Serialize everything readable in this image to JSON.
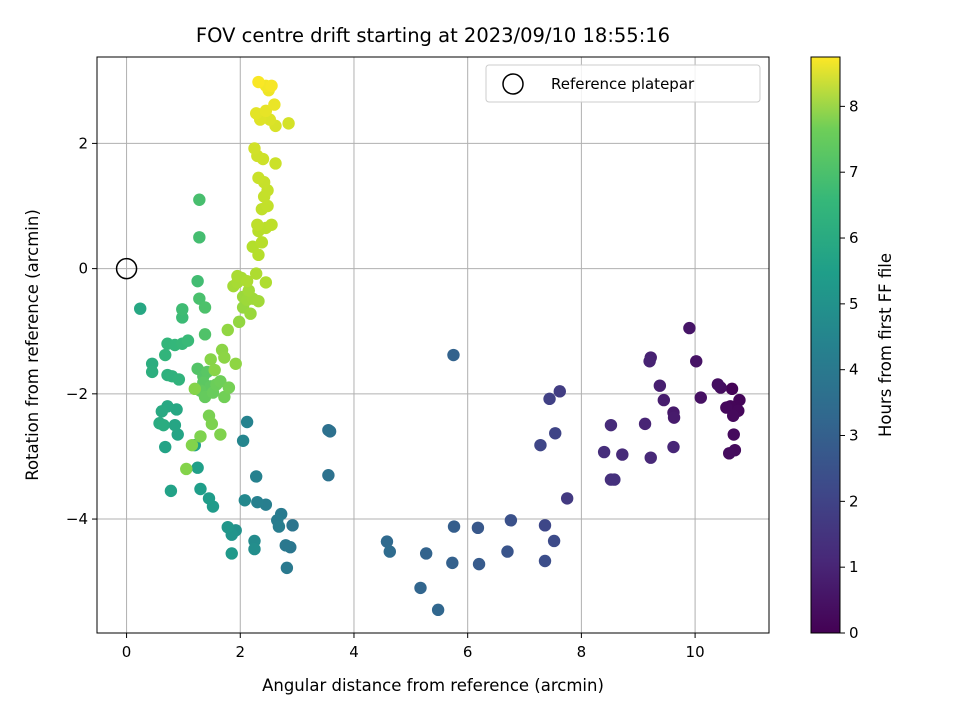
{
  "chart_data": {
    "type": "scatter",
    "title": "FOV centre drift starting at 2023/09/10 18:55:16",
    "xlabel": "Angular distance from reference (arcmin)",
    "ylabel": "Rotation from reference (arcmin)",
    "xlim": [
      -0.52,
      11.3
    ],
    "ylim": [
      -5.82,
      3.38
    ],
    "xticks": [
      0,
      2,
      4,
      6,
      8,
      10
    ],
    "yticks": [
      -4,
      -2,
      0,
      2
    ],
    "xtick_labels": [
      "0",
      "2",
      "4",
      "6",
      "8",
      "10"
    ],
    "ytick_labels": [
      "−4",
      "−2",
      "0",
      "2"
    ],
    "grid": true,
    "legend": {
      "placement": "top-right",
      "label": "Reference platepar"
    },
    "reference_point": {
      "x": 0,
      "y": 0
    },
    "colorbar": {
      "label": "Hours from first FF file",
      "colormap": "viridis",
      "min": 0,
      "max": 8.75,
      "ticks": [
        0,
        1,
        2,
        3,
        4,
        5,
        6,
        7,
        8
      ],
      "tick_labels": [
        "0",
        "1",
        "2",
        "3",
        "4",
        "5",
        "6",
        "7",
        "8"
      ]
    },
    "points": [
      {
        "x": 10.65,
        "y": -1.92,
        "c": 0.05
      },
      {
        "x": 10.78,
        "y": -2.1,
        "c": 0.1
      },
      {
        "x": 10.62,
        "y": -2.2,
        "c": 0.12
      },
      {
        "x": 10.76,
        "y": -2.27,
        "c": 0.15
      },
      {
        "x": 10.55,
        "y": -2.22,
        "c": 0.18
      },
      {
        "x": 10.67,
        "y": -2.35,
        "c": 0.2
      },
      {
        "x": 10.68,
        "y": -2.65,
        "c": 0.22
      },
      {
        "x": 10.7,
        "y": -2.9,
        "c": 0.25
      },
      {
        "x": 10.6,
        "y": -2.95,
        "c": 0.28
      },
      {
        "x": 10.45,
        "y": -1.9,
        "c": 0.3
      },
      {
        "x": 10.4,
        "y": -1.85,
        "c": 0.35
      },
      {
        "x": 10.1,
        "y": -2.06,
        "c": 0.4
      },
      {
        "x": 10.02,
        "y": -1.48,
        "c": 0.45
      },
      {
        "x": 9.9,
        "y": -0.95,
        "c": 0.5
      },
      {
        "x": 9.62,
        "y": -2.3,
        "c": 0.6
      },
      {
        "x": 9.63,
        "y": -2.38,
        "c": 0.65
      },
      {
        "x": 9.45,
        "y": -2.1,
        "c": 0.7
      },
      {
        "x": 9.38,
        "y": -1.87,
        "c": 0.75
      },
      {
        "x": 9.22,
        "y": -1.42,
        "c": 0.8
      },
      {
        "x": 9.2,
        "y": -1.48,
        "c": 0.85
      },
      {
        "x": 9.12,
        "y": -2.48,
        "c": 0.9
      },
      {
        "x": 9.62,
        "y": -2.85,
        "c": 0.95
      },
      {
        "x": 9.22,
        "y": -3.02,
        "c": 1.0
      },
      {
        "x": 8.72,
        "y": -2.97,
        "c": 1.05
      },
      {
        "x": 8.52,
        "y": -2.5,
        "c": 1.1
      },
      {
        "x": 8.4,
        "y": -2.93,
        "c": 1.15
      },
      {
        "x": 8.52,
        "y": -3.37,
        "c": 1.2
      },
      {
        "x": 8.58,
        "y": -3.37,
        "c": 1.25
      },
      {
        "x": 7.75,
        "y": -3.67,
        "c": 1.5
      },
      {
        "x": 7.62,
        "y": -1.96,
        "c": 1.6
      },
      {
        "x": 7.44,
        "y": -2.08,
        "c": 1.7
      },
      {
        "x": 7.54,
        "y": -2.63,
        "c": 1.8
      },
      {
        "x": 7.28,
        "y": -2.82,
        "c": 1.85
      },
      {
        "x": 7.36,
        "y": -4.1,
        "c": 1.9
      },
      {
        "x": 7.52,
        "y": -4.35,
        "c": 2.0
      },
      {
        "x": 7.36,
        "y": -4.67,
        "c": 2.1
      },
      {
        "x": 6.76,
        "y": -4.02,
        "c": 2.2
      },
      {
        "x": 6.7,
        "y": -4.52,
        "c": 2.3
      },
      {
        "x": 6.18,
        "y": -4.14,
        "c": 2.4
      },
      {
        "x": 6.2,
        "y": -4.72,
        "c": 2.5
      },
      {
        "x": 5.76,
        "y": -4.12,
        "c": 2.6
      },
      {
        "x": 5.73,
        "y": -4.7,
        "c": 2.7
      },
      {
        "x": 5.75,
        "y": -1.38,
        "c": 2.75
      },
      {
        "x": 5.27,
        "y": -4.55,
        "c": 2.8
      },
      {
        "x": 5.17,
        "y": -5.1,
        "c": 2.85
      },
      {
        "x": 5.48,
        "y": -5.45,
        "c": 2.9
      },
      {
        "x": 4.58,
        "y": -4.36,
        "c": 3.0
      },
      {
        "x": 4.63,
        "y": -4.52,
        "c": 3.05
      },
      {
        "x": 3.55,
        "y": -2.58,
        "c": 3.2
      },
      {
        "x": 3.58,
        "y": -2.6,
        "c": 3.25
      },
      {
        "x": 3.55,
        "y": -3.3,
        "c": 3.3
      },
      {
        "x": 2.92,
        "y": -4.1,
        "c": 3.4
      },
      {
        "x": 2.88,
        "y": -4.45,
        "c": 3.45
      },
      {
        "x": 2.8,
        "y": -4.42,
        "c": 3.5
      },
      {
        "x": 2.82,
        "y": -4.78,
        "c": 3.55
      },
      {
        "x": 2.72,
        "y": -3.92,
        "c": 3.6
      },
      {
        "x": 2.65,
        "y": -4.02,
        "c": 3.65
      },
      {
        "x": 2.68,
        "y": -4.12,
        "c": 3.7
      },
      {
        "x": 2.45,
        "y": -3.77,
        "c": 3.75
      },
      {
        "x": 2.3,
        "y": -3.73,
        "c": 3.8
      },
      {
        "x": 2.28,
        "y": -3.32,
        "c": 3.85
      },
      {
        "x": 2.12,
        "y": -2.45,
        "c": 3.9
      },
      {
        "x": 2.05,
        "y": -2.75,
        "c": 4.0
      },
      {
        "x": 2.08,
        "y": -3.7,
        "c": 4.1
      },
      {
        "x": 2.25,
        "y": -4.35,
        "c": 4.2
      },
      {
        "x": 2.25,
        "y": -4.48,
        "c": 4.3
      },
      {
        "x": 1.92,
        "y": -4.18,
        "c": 4.4
      },
      {
        "x": 1.85,
        "y": -4.25,
        "c": 4.5
      },
      {
        "x": 1.78,
        "y": -4.13,
        "c": 4.6
      },
      {
        "x": 1.85,
        "y": -4.55,
        "c": 4.7
      },
      {
        "x": 1.52,
        "y": -3.8,
        "c": 4.75
      },
      {
        "x": 1.45,
        "y": -3.67,
        "c": 4.8
      },
      {
        "x": 1.3,
        "y": -3.52,
        "c": 4.85
      },
      {
        "x": 1.25,
        "y": -3.18,
        "c": 4.9
      },
      {
        "x": 1.2,
        "y": -2.82,
        "c": 4.95
      },
      {
        "x": 0.78,
        "y": -3.55,
        "c": 5.0
      },
      {
        "x": 0.68,
        "y": -2.85,
        "c": 5.05
      },
      {
        "x": 0.9,
        "y": -2.65,
        "c": 5.1
      },
      {
        "x": 0.85,
        "y": -2.5,
        "c": 5.15
      },
      {
        "x": 0.88,
        "y": -2.25,
        "c": 5.2
      },
      {
        "x": 0.72,
        "y": -2.2,
        "c": 5.25
      },
      {
        "x": 0.62,
        "y": -2.28,
        "c": 5.3
      },
      {
        "x": 0.58,
        "y": -2.47,
        "c": 5.35
      },
      {
        "x": 0.65,
        "y": -2.5,
        "c": 5.4
      },
      {
        "x": 0.45,
        "y": -1.52,
        "c": 5.45
      },
      {
        "x": 0.45,
        "y": -1.65,
        "c": 5.5
      },
      {
        "x": 0.72,
        "y": -1.7,
        "c": 5.55
      },
      {
        "x": 0.8,
        "y": -1.72,
        "c": 5.6
      },
      {
        "x": 0.92,
        "y": -1.77,
        "c": 5.65
      },
      {
        "x": 0.68,
        "y": -1.38,
        "c": 5.7
      },
      {
        "x": 0.72,
        "y": -1.2,
        "c": 5.75
      },
      {
        "x": 0.85,
        "y": -1.22,
        "c": 5.8
      },
      {
        "x": 0.98,
        "y": -1.2,
        "c": 5.85
      },
      {
        "x": 1.08,
        "y": -1.15,
        "c": 5.9
      },
      {
        "x": 0.98,
        "y": -0.78,
        "c": 5.95
      },
      {
        "x": 0.98,
        "y": -0.65,
        "c": 6.0
      },
      {
        "x": 0.24,
        "y": -0.64,
        "c": 5.2
      },
      {
        "x": 1.25,
        "y": -0.2,
        "c": 6.05
      },
      {
        "x": 1.28,
        "y": 0.5,
        "c": 6.1
      },
      {
        "x": 1.28,
        "y": 1.1,
        "c": 6.15
      },
      {
        "x": 1.28,
        "y": -0.48,
        "c": 6.2
      },
      {
        "x": 1.38,
        "y": -0.62,
        "c": 6.25
      },
      {
        "x": 1.38,
        "y": -1.05,
        "c": 6.3
      },
      {
        "x": 1.25,
        "y": -1.6,
        "c": 6.35
      },
      {
        "x": 1.35,
        "y": -1.72,
        "c": 6.4
      },
      {
        "x": 1.42,
        "y": -1.65,
        "c": 6.45
      },
      {
        "x": 1.35,
        "y": -1.82,
        "c": 6.5
      },
      {
        "x": 1.48,
        "y": -1.88,
        "c": 6.55
      },
      {
        "x": 1.3,
        "y": -1.95,
        "c": 6.6
      },
      {
        "x": 1.38,
        "y": -2.05,
        "c": 6.65
      },
      {
        "x": 1.52,
        "y": -1.98,
        "c": 6.7
      },
      {
        "x": 1.58,
        "y": -1.85,
        "c": 6.75
      },
      {
        "x": 1.65,
        "y": -1.8,
        "c": 6.8
      },
      {
        "x": 1.72,
        "y": -2.05,
        "c": 6.85
      },
      {
        "x": 1.8,
        "y": -1.9,
        "c": 6.9
      },
      {
        "x": 1.45,
        "y": -2.35,
        "c": 6.95
      },
      {
        "x": 1.5,
        "y": -2.48,
        "c": 7.0
      },
      {
        "x": 1.3,
        "y": -2.68,
        "c": 7.02
      },
      {
        "x": 1.65,
        "y": -2.65,
        "c": 7.05
      },
      {
        "x": 1.15,
        "y": -2.82,
        "c": 7.08
      },
      {
        "x": 1.05,
        "y": -3.2,
        "c": 7.1
      },
      {
        "x": 1.2,
        "y": -1.92,
        "c": 7.12
      },
      {
        "x": 1.48,
        "y": -1.45,
        "c": 7.15
      },
      {
        "x": 1.55,
        "y": -1.62,
        "c": 7.18
      },
      {
        "x": 1.68,
        "y": -1.3,
        "c": 7.2
      },
      {
        "x": 1.72,
        "y": -1.42,
        "c": 7.22
      },
      {
        "x": 1.92,
        "y": -1.52,
        "c": 7.25
      },
      {
        "x": 1.78,
        "y": -0.98,
        "c": 7.28
      },
      {
        "x": 1.98,
        "y": -0.85,
        "c": 7.3
      },
      {
        "x": 2.05,
        "y": -0.62,
        "c": 7.35
      },
      {
        "x": 2.18,
        "y": -0.72,
        "c": 7.4
      },
      {
        "x": 2.05,
        "y": -0.45,
        "c": 7.42
      },
      {
        "x": 2.12,
        "y": -0.5,
        "c": 7.45
      },
      {
        "x": 2.22,
        "y": -0.48,
        "c": 7.48
      },
      {
        "x": 2.32,
        "y": -0.52,
        "c": 7.5
      },
      {
        "x": 2.15,
        "y": -0.35,
        "c": 7.52
      },
      {
        "x": 1.88,
        "y": -0.28,
        "c": 7.55
      },
      {
        "x": 1.95,
        "y": -0.22,
        "c": 7.58
      },
      {
        "x": 2.02,
        "y": -0.15,
        "c": 7.6
      },
      {
        "x": 1.95,
        "y": -0.12,
        "c": 7.62
      },
      {
        "x": 2.12,
        "y": -0.2,
        "c": 7.65
      },
      {
        "x": 2.28,
        "y": -0.08,
        "c": 7.68
      },
      {
        "x": 2.45,
        "y": -0.22,
        "c": 7.7
      },
      {
        "x": 2.22,
        "y": 0.35,
        "c": 7.75
      },
      {
        "x": 2.32,
        "y": 0.22,
        "c": 7.78
      },
      {
        "x": 2.38,
        "y": 0.42,
        "c": 7.8
      },
      {
        "x": 2.32,
        "y": 0.6,
        "c": 7.82
      },
      {
        "x": 2.45,
        "y": 0.65,
        "c": 7.85
      },
      {
        "x": 2.55,
        "y": 0.7,
        "c": 7.88
      },
      {
        "x": 2.3,
        "y": 0.7,
        "c": 7.9
      },
      {
        "x": 2.38,
        "y": 0.95,
        "c": 7.92
      },
      {
        "x": 2.48,
        "y": 1.0,
        "c": 7.95
      },
      {
        "x": 2.42,
        "y": 1.15,
        "c": 7.98
      },
      {
        "x": 2.48,
        "y": 1.25,
        "c": 8.0
      },
      {
        "x": 2.42,
        "y": 1.38,
        "c": 8.02
      },
      {
        "x": 2.32,
        "y": 1.45,
        "c": 8.05
      },
      {
        "x": 2.62,
        "y": 1.68,
        "c": 8.08
      },
      {
        "x": 2.4,
        "y": 1.75,
        "c": 8.1
      },
      {
        "x": 2.3,
        "y": 1.8,
        "c": 8.12
      },
      {
        "x": 2.25,
        "y": 1.92,
        "c": 8.15
      },
      {
        "x": 2.85,
        "y": 2.32,
        "c": 8.2
      },
      {
        "x": 2.62,
        "y": 2.28,
        "c": 8.25
      },
      {
        "x": 2.52,
        "y": 2.38,
        "c": 8.3
      },
      {
        "x": 2.35,
        "y": 2.38,
        "c": 8.35
      },
      {
        "x": 2.28,
        "y": 2.48,
        "c": 8.4
      },
      {
        "x": 2.45,
        "y": 2.52,
        "c": 8.45
      },
      {
        "x": 2.6,
        "y": 2.62,
        "c": 8.5
      },
      {
        "x": 2.5,
        "y": 2.85,
        "c": 8.55
      },
      {
        "x": 2.45,
        "y": 2.92,
        "c": 8.6
      },
      {
        "x": 2.55,
        "y": 2.92,
        "c": 8.65
      },
      {
        "x": 2.32,
        "y": 2.98,
        "c": 8.7
      }
    ]
  }
}
